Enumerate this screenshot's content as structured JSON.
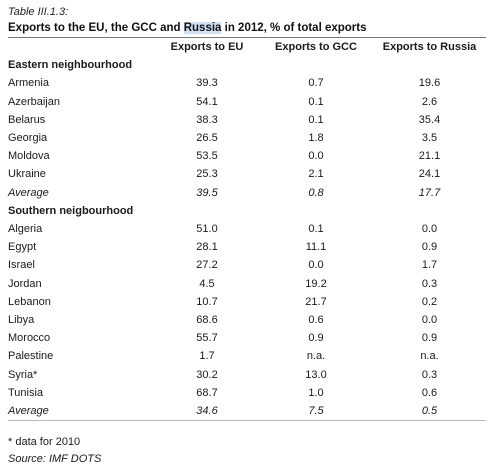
{
  "caption": "Table III.1.3:",
  "title": {
    "prefix": "Exports to the EU, the GCC and ",
    "highlight": "Russia",
    "suffix": " in 2012, % of total exports"
  },
  "columns": [
    "",
    "Exports to EU",
    "Exports to GCC",
    "Exports to Russia"
  ],
  "sections": [
    {
      "name": "Eastern neighbourhood",
      "rows": [
        {
          "country": "Armenia",
          "eu": "39.3",
          "gcc": "0.7",
          "russia": "19.6"
        },
        {
          "country": "Azerbaijan",
          "eu": "54.1",
          "gcc": "0.1",
          "russia": "2.6"
        },
        {
          "country": "Belarus",
          "eu": "38.3",
          "gcc": "0.1",
          "russia": "35.4"
        },
        {
          "country": "Georgia",
          "eu": "26.5",
          "gcc": "1.8",
          "russia": "3.5"
        },
        {
          "country": "Moldova",
          "eu": "53.5",
          "gcc": "0.0",
          "russia": "21.1"
        },
        {
          "country": "Ukraine",
          "eu": "25.3",
          "gcc": "2.1",
          "russia": "24.1"
        }
      ],
      "average": {
        "label": "Average",
        "eu": "39.5",
        "gcc": "0.8",
        "russia": "17.7"
      }
    },
    {
      "name": "Southern neigbourhood",
      "rows": [
        {
          "country": "Algeria",
          "eu": "51.0",
          "gcc": "0.1",
          "russia": "0.0"
        },
        {
          "country": "Egypt",
          "eu": "28.1",
          "gcc": "11.1",
          "russia": "0.9"
        },
        {
          "country": "Israel",
          "eu": "27.2",
          "gcc": "0.0",
          "russia": "1.7"
        },
        {
          "country": "Jordan",
          "eu": "4.5",
          "gcc": "19.2",
          "russia": "0.3"
        },
        {
          "country": "Lebanon",
          "eu": "10.7",
          "gcc": "21.7",
          "russia": "0.2"
        },
        {
          "country": "Libya",
          "eu": "68.6",
          "gcc": "0.6",
          "russia": "0.0"
        },
        {
          "country": "Morocco",
          "eu": "55.7",
          "gcc": "0.9",
          "russia": "0.9"
        },
        {
          "country": "Palestine",
          "eu": "1.7",
          "gcc": "n.a.",
          "russia": "n.a."
        },
        {
          "country": "Syria*",
          "eu": "30.2",
          "gcc": "13.0",
          "russia": "0.3"
        },
        {
          "country": "Tunisia",
          "eu": "68.7",
          "gcc": "1.0",
          "russia": "0.6"
        }
      ],
      "average": {
        "label": "Average",
        "eu": "34.6",
        "gcc": "7.5",
        "russia": "0.5"
      }
    }
  ],
  "footnote": "* data for 2010",
  "source": "Source: IMF DOTS",
  "colors": {
    "highlight": "#cfe0f2",
    "rule": "#777777"
  }
}
